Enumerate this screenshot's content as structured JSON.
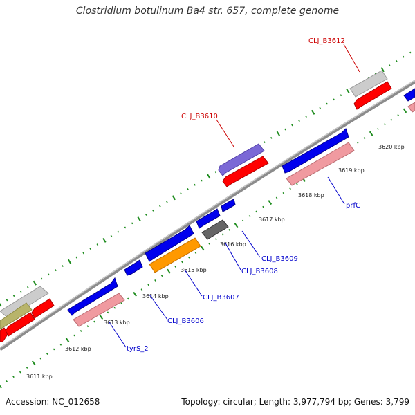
{
  "title": "Clostridium botulinum Ba4 str. 657, complete genome",
  "footer": {
    "accession": "Accession: NC_012658",
    "stats": "Topology: circular; Length: 3,977,794 bp; Genes: 3,799"
  },
  "colors": {
    "backbone": "#8c8c8c",
    "tick": "#1e8c1e",
    "forward_gene": "#0000ee",
    "reverse_gene": "#ff0000",
    "pseudo_gene": "#f09aa0",
    "rna": "#cccccc",
    "orange_gene": "#ff9900",
    "purple_gene": "#7b68d6",
    "olive_gene": "#b8b46a",
    "dark_gray_gene": "#666666",
    "label_red": "#cc0000",
    "label_blue": "#0000cc"
  },
  "ticks": [
    {
      "label": "3611 kbp"
    },
    {
      "label": "3612 kbp"
    },
    {
      "label": "3613 kbp"
    },
    {
      "label": "3614 kbp"
    },
    {
      "label": "3615 kbp"
    },
    {
      "label": "3616 kbp"
    },
    {
      "label": "3617 kbp"
    },
    {
      "label": "3618 kbp"
    },
    {
      "label": "3619 kbp"
    },
    {
      "label": "3620 kbp"
    }
  ],
  "callouts": [
    {
      "label": "CLJ_B3612",
      "color": "red"
    },
    {
      "label": "CLJ_B3610",
      "color": "red"
    },
    {
      "label": "prfC",
      "color": "blue"
    },
    {
      "label": "CLJ_B3609",
      "color": "blue"
    },
    {
      "label": "CLJ_B3608",
      "color": "blue"
    },
    {
      "label": "CLJ_B3607",
      "color": "blue"
    },
    {
      "label": "CLJ_B3606",
      "color": "blue"
    },
    {
      "label": "tyrS_2",
      "color": "blue"
    }
  ]
}
